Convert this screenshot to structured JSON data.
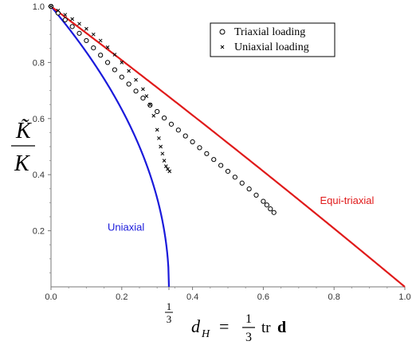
{
  "chart_data": {
    "type": "scatter",
    "xlim": [
      0,
      1
    ],
    "ylim": [
      0,
      1
    ],
    "x_ticks": [
      {
        "value": 0.0,
        "label": "0.0"
      },
      {
        "value": 0.2,
        "label": "0.2"
      },
      {
        "value": 0.4,
        "label": "0.4"
      },
      {
        "value": 0.6,
        "label": "0.6"
      },
      {
        "value": 0.8,
        "label": "0.8"
      },
      {
        "value": 1.0,
        "label": "1.0"
      }
    ],
    "y_ticks": [
      {
        "value": 0.2,
        "label": "0.2"
      },
      {
        "value": 0.4,
        "label": "0.4"
      },
      {
        "value": 0.6,
        "label": "0.6"
      },
      {
        "value": 0.8,
        "label": "0.8"
      },
      {
        "value": 1.0,
        "label": "1.0"
      }
    ],
    "special_x_tick": {
      "value": 0.3333,
      "numerator": "1",
      "denominator": "3"
    },
    "ylabel": {
      "numerator": "K̃",
      "denominator": "K"
    },
    "xlabel": {
      "lhs": "d",
      "lhs_sub": "H",
      "equals": "=",
      "frac_num": "1",
      "frac_den": "3",
      "op": "tr",
      "bold": "d"
    },
    "grid": false,
    "legend_position": "top-right",
    "series": [
      {
        "name": "Triaxial loading",
        "kind": "points",
        "marker": "circle",
        "color": "#000000",
        "points": [
          [
            0.0,
            1.0
          ],
          [
            0.02,
            0.976
          ],
          [
            0.04,
            0.952
          ],
          [
            0.06,
            0.928
          ],
          [
            0.08,
            0.904
          ],
          [
            0.1,
            0.878
          ],
          [
            0.12,
            0.852
          ],
          [
            0.14,
            0.826
          ],
          [
            0.16,
            0.8
          ],
          [
            0.18,
            0.774
          ],
          [
            0.2,
            0.748
          ],
          [
            0.22,
            0.723
          ],
          [
            0.24,
            0.698
          ],
          [
            0.26,
            0.673
          ],
          [
            0.28,
            0.648
          ],
          [
            0.3,
            0.625
          ],
          [
            0.32,
            0.602
          ],
          [
            0.34,
            0.58
          ],
          [
            0.36,
            0.559
          ],
          [
            0.38,
            0.538
          ],
          [
            0.4,
            0.517
          ],
          [
            0.42,
            0.496
          ],
          [
            0.44,
            0.475
          ],
          [
            0.46,
            0.454
          ],
          [
            0.48,
            0.433
          ],
          [
            0.5,
            0.412
          ],
          [
            0.52,
            0.391
          ],
          [
            0.54,
            0.37
          ],
          [
            0.56,
            0.349
          ],
          [
            0.58,
            0.327
          ],
          [
            0.6,
            0.305
          ],
          [
            0.61,
            0.292
          ],
          [
            0.62,
            0.278
          ],
          [
            0.63,
            0.265
          ]
        ]
      },
      {
        "name": "Uniaxial loading",
        "kind": "points",
        "marker": "cross",
        "color": "#000000",
        "points": [
          [
            0.0,
            1.0
          ],
          [
            0.02,
            0.985
          ],
          [
            0.04,
            0.97
          ],
          [
            0.06,
            0.955
          ],
          [
            0.08,
            0.938
          ],
          [
            0.1,
            0.92
          ],
          [
            0.12,
            0.9
          ],
          [
            0.14,
            0.878
          ],
          [
            0.16,
            0.854
          ],
          [
            0.18,
            0.828
          ],
          [
            0.2,
            0.8
          ],
          [
            0.22,
            0.77
          ],
          [
            0.24,
            0.738
          ],
          [
            0.26,
            0.705
          ],
          [
            0.27,
            0.68
          ],
          [
            0.28,
            0.65
          ],
          [
            0.29,
            0.61
          ],
          [
            0.3,
            0.56
          ],
          [
            0.305,
            0.53
          ],
          [
            0.31,
            0.5
          ],
          [
            0.315,
            0.475
          ],
          [
            0.32,
            0.45
          ],
          [
            0.325,
            0.43
          ],
          [
            0.33,
            0.42
          ],
          [
            0.335,
            0.412
          ]
        ]
      },
      {
        "name": "Uniaxial",
        "kind": "curve",
        "function": "uniaxial",
        "color": "#1a1adb",
        "label_at": [
          0.16,
          0.2
        ]
      },
      {
        "name": "Equi-triaxial",
        "kind": "curve",
        "function": "equitriaxial",
        "color": "#e01a1a",
        "label_at": [
          0.76,
          0.295
        ]
      }
    ]
  }
}
